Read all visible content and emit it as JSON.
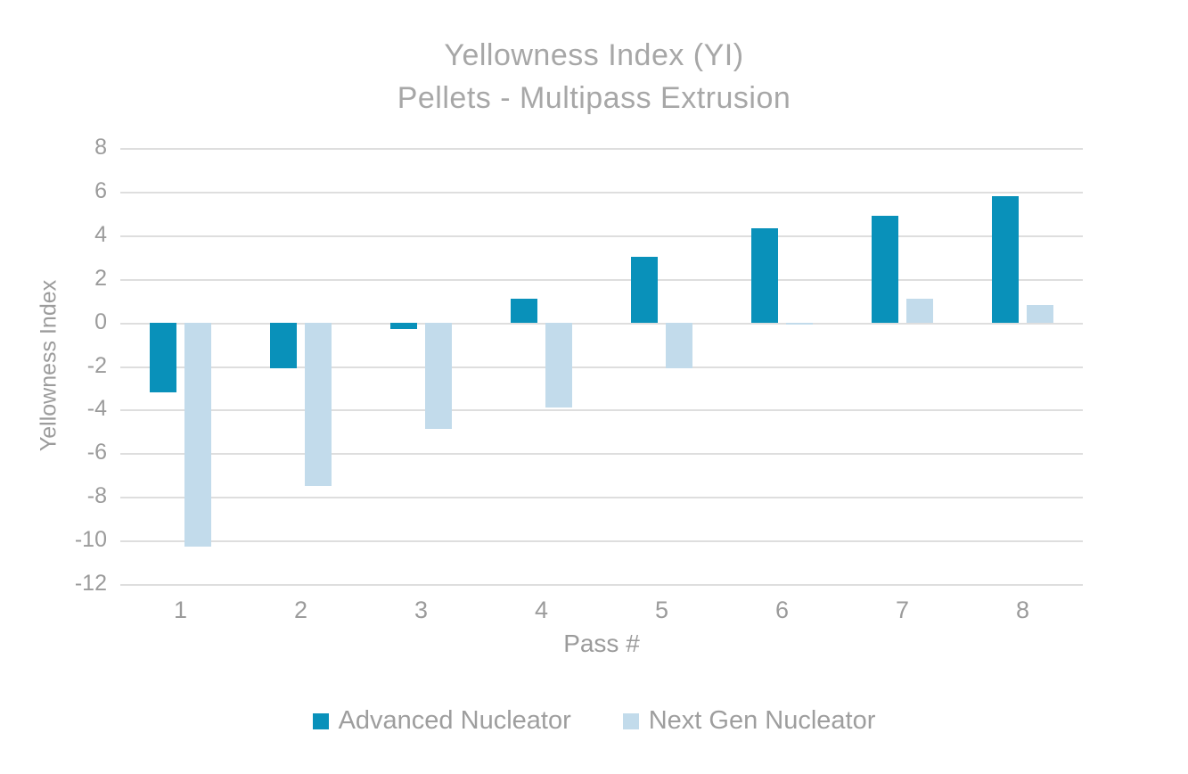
{
  "title": {
    "line1": "Yellowness Index (YI)",
    "line2": "Pellets - Multipass Extrusion"
  },
  "chart_data": {
    "type": "bar",
    "title": "Yellowness Index (YI) Pellets - Multipass Extrusion",
    "categories": [
      "1",
      "2",
      "3",
      "4",
      "5",
      "6",
      "7",
      "8"
    ],
    "series": [
      {
        "name": "Advanced Nucleator",
        "color": "#0991ba",
        "values": [
          -3.2,
          -2.1,
          -0.3,
          1.1,
          3.0,
          4.3,
          4.9,
          5.8
        ]
      },
      {
        "name": "Next Gen Nucleator",
        "color": "#c2dbeb",
        "values": [
          -10.3,
          -7.5,
          -4.9,
          -3.9,
          -2.1,
          -0.1,
          1.1,
          0.8
        ]
      }
    ],
    "xlabel": "Pass #",
    "ylabel": "Yellowness Index",
    "ylim": [
      -12,
      8
    ],
    "ytick_step": 2,
    "grid": true,
    "legend_position": "bottom"
  },
  "colors": {
    "series_advanced": "#0991ba",
    "series_next_gen": "#c2dbeb",
    "gridline": "#dedede",
    "title_text": "#a7a7a7",
    "axis_text": "#9b9b9b"
  }
}
